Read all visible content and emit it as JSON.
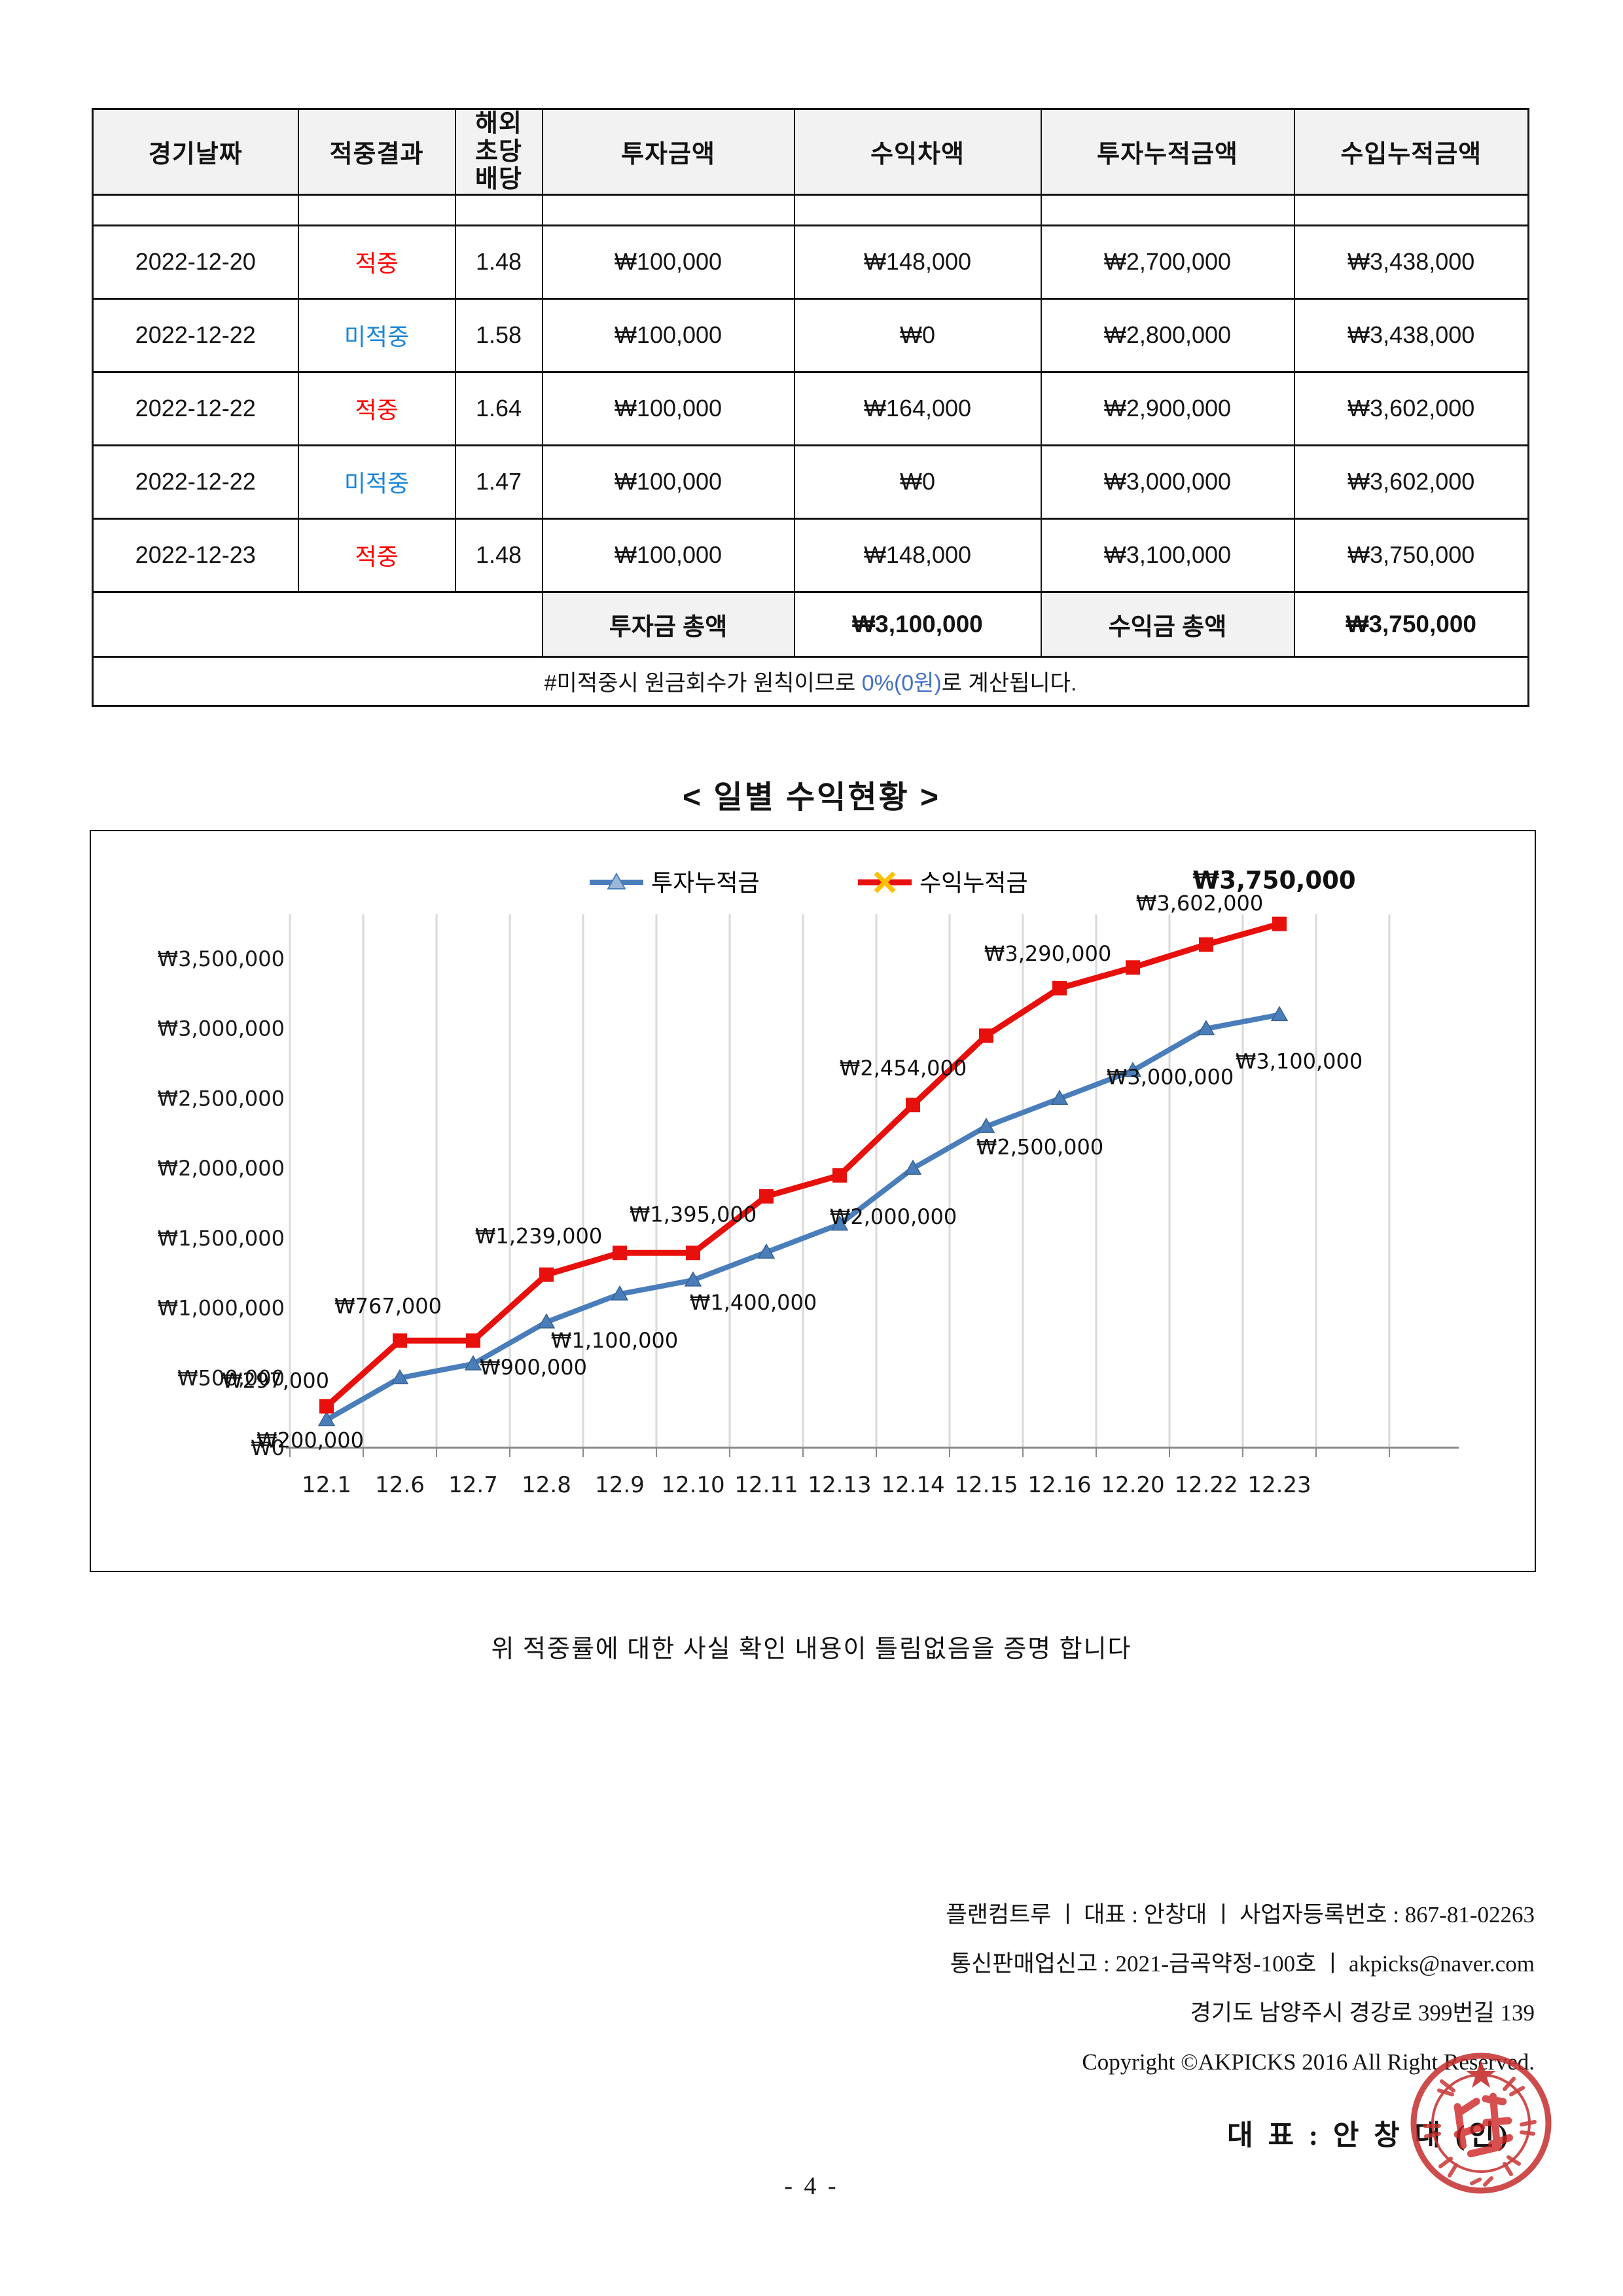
{
  "page": {
    "number": "- 4 -"
  },
  "colors": {
    "hit": "#ff0000",
    "miss": "#1b86d8",
    "note_highlight": "#4472c4",
    "series_invest": "#4a7ebb",
    "series_income": "#e8100c",
    "legend_x_marker": "#ffc000",
    "stamp": "#c62f2f"
  },
  "table": {
    "headers": [
      "경기날짜",
      "적중결과",
      "해외\n초당\n배당",
      "투자금액",
      "수익차액",
      "투자누적금액",
      "수입누적금액"
    ],
    "rows": [
      {
        "date": "2022-12-20",
        "result": "적중",
        "result_type": "hit",
        "odds": "1.48",
        "invest": "₩100,000",
        "profit": "₩148,000",
        "invest_cum": "₩2,700,000",
        "income_cum": "₩3,438,000"
      },
      {
        "date": "2022-12-22",
        "result": "미적중",
        "result_type": "miss",
        "odds": "1.58",
        "invest": "₩100,000",
        "profit": "₩0",
        "invest_cum": "₩2,800,000",
        "income_cum": "₩3,438,000"
      },
      {
        "date": "2022-12-22",
        "result": "적중",
        "result_type": "hit",
        "odds": "1.64",
        "invest": "₩100,000",
        "profit": "₩164,000",
        "invest_cum": "₩2,900,000",
        "income_cum": "₩3,602,000"
      },
      {
        "date": "2022-12-22",
        "result": "미적중",
        "result_type": "miss",
        "odds": "1.47",
        "invest": "₩100,000",
        "profit": "₩0",
        "invest_cum": "₩3,000,000",
        "income_cum": "₩3,602,000"
      },
      {
        "date": "2022-12-23",
        "result": "적중",
        "result_type": "hit",
        "odds": "1.48",
        "invest": "₩100,000",
        "profit": "₩148,000",
        "invest_cum": "₩3,100,000",
        "income_cum": "₩3,750,000"
      }
    ],
    "totals": {
      "invest_label": "투자금 총액",
      "invest_value": "₩3,100,000",
      "income_label": "수익금 총액",
      "income_value": "₩3,750,000"
    },
    "note": {
      "prefix": "#미적중시 원금회수가 원칙이므로 ",
      "highlight": "0%(0원)",
      "suffix": "로 계산됩니다."
    }
  },
  "chart_data": {
    "type": "line",
    "title": "< 일별 수익현황 >",
    "categories": [
      "12.1",
      "12.6",
      "12.7",
      "12.8",
      "12.9",
      "12.10",
      "12.11",
      "12.13",
      "12.14",
      "12.15",
      "12.16",
      "12.20",
      "12.22",
      "12.23"
    ],
    "series": [
      {
        "name": "투자누적금",
        "color": "#4a7ebb",
        "marker": "triangle",
        "values": [
          200000,
          500000,
          600000,
          900000,
          1100000,
          1200000,
          1400000,
          1600000,
          2000000,
          2300000,
          2500000,
          2700000,
          3000000,
          3100000
        ],
        "data_labels": [
          {
            "i": 0,
            "dx": -25,
            "dy": 42
          },
          {
            "i": 3,
            "dx": -20,
            "dy": 80
          },
          {
            "i": 4,
            "dx": -8,
            "dy": 82
          },
          {
            "i": 6,
            "dx": -20,
            "dy": 88
          },
          {
            "i": 8,
            "dx": -30,
            "dy": 85
          },
          {
            "i": 10,
            "dx": -30,
            "dy": 85
          },
          {
            "i": 12,
            "dx": -55,
            "dy": 85
          },
          {
            "i": 13,
            "dx": 30,
            "dy": 82
          }
        ]
      },
      {
        "name": "수익누적금",
        "color": "#e8100c",
        "marker": "square",
        "values": [
          297000,
          767000,
          767000,
          1239000,
          1395000,
          1395000,
          1800000,
          1950000,
          2454000,
          2950000,
          3290000,
          3438000,
          3602000,
          3750000
        ],
        "data_labels": [
          {
            "i": 0,
            "dx": -78,
            "dy": -28
          },
          {
            "i": 1,
            "dx": -18,
            "dy": -42
          },
          {
            "i": 3,
            "dx": -12,
            "dy": -48
          },
          {
            "i": 5,
            "dx": 0,
            "dy": -48
          },
          {
            "i": 8,
            "dx": -15,
            "dy": -45
          },
          {
            "i": 10,
            "dx": -18,
            "dy": -42
          },
          {
            "i": 12,
            "dx": -10,
            "dy": -52
          },
          {
            "i": 13,
            "dx": -8,
            "dy": -54,
            "bold": true
          }
        ]
      }
    ],
    "y_ticks": [
      0,
      500000,
      1000000,
      1500000,
      2000000,
      2500000,
      3000000,
      3500000
    ],
    "ylim": [
      0,
      3900000
    ],
    "currency_prefix": "₩",
    "xlabel": "",
    "ylabel": "",
    "grid": "vertical",
    "legend_position": "top"
  },
  "certificate": "위 적중률에 대한 사실 확인 내용이 틀림없음을 증명 합니다",
  "footer": {
    "line1": "플랜컴트루 ㅣ 대표 : 안창대 ㅣ 사업자등록번호 : 867-81-02263",
    "line2": "통신판매업신고 : 2021-금곡약정-100호 ㅣ akpicks@naver.com",
    "line3": "경기도 남양주시 경강로 399번길 139",
    "copyright": "Copyright ©AKPICKS 2016 All Right Reserved.",
    "representative": "대 표 : 안 창 대 (인)"
  }
}
